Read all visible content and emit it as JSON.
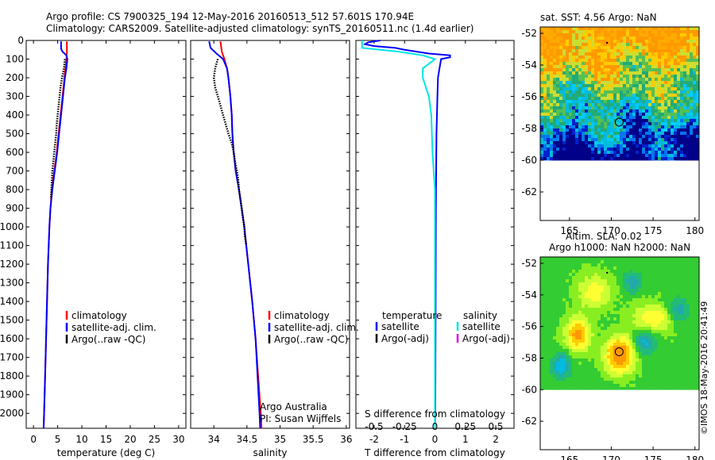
{
  "header": {
    "line1": "Argo profile: CS 7900325_194 12-May-2016 20160513_512 57.601S 170.94E",
    "line2": "Climatology: CARS2009. Satellite-adjusted climatology: synTS_20160511.nc (1.4d earlier)"
  },
  "colors": {
    "climatology": "#ff0000",
    "satellite": "#0000ff",
    "argo": "#000000",
    "sal_sat": "#00e5e5",
    "sal_argo": "#e000e0"
  },
  "legends": {
    "temp": [
      "climatology",
      "satellite-adj. clim.",
      "Argo(..raw -QC)"
    ],
    "sal": [
      "climatology",
      "satellite-adj. clim.",
      "Argo(..raw -QC)"
    ],
    "diff": {
      "col1_title": "temperature",
      "col2_title": "salinity",
      "satellite": "satellite",
      "argo": "Argo(-adj)"
    }
  },
  "annotations": {
    "argo_line1": "Argo Australia",
    "argo_line2": "PI: Susan Wijffels"
  },
  "side_note": "©IMOS 18-May-2016 20:41:49",
  "chart_data": [
    {
      "type": "line",
      "id": "temperature",
      "xlabel": "temperature (deg C)",
      "ylabel": "",
      "xlim": [
        -1.5,
        31.5
      ],
      "ylim": [
        2080,
        0
      ],
      "xticks": [
        0,
        5,
        10,
        15,
        20,
        25,
        30
      ],
      "yticks": [
        0,
        100,
        200,
        300,
        400,
        500,
        600,
        700,
        800,
        900,
        1000,
        1100,
        1200,
        1300,
        1400,
        1500,
        1600,
        1700,
        1800,
        1900,
        2000
      ],
      "series": [
        {
          "name": "climatology",
          "depth": [
            5,
            60,
            100,
            150,
            200,
            300,
            400,
            500,
            600,
            700,
            800,
            900,
            1000,
            1200,
            1400,
            1600,
            1800,
            2000,
            2080
          ],
          "values": [
            6.9,
            6.9,
            6.8,
            6.6,
            6.4,
            6.0,
            5.6,
            5.2,
            4.8,
            4.3,
            3.8,
            3.5,
            3.3,
            3.0,
            2.8,
            2.6,
            2.4,
            2.2,
            2.1
          ]
        },
        {
          "name": "satellite-adj. clim.",
          "depth": [
            5,
            45,
            60,
            80,
            100,
            150,
            200,
            300,
            400,
            500,
            600,
            700,
            800,
            900,
            1000,
            1200,
            1400,
            1600,
            1800,
            2000,
            2080
          ],
          "values": [
            5.7,
            5.7,
            6.0,
            6.8,
            7.0,
            6.8,
            6.5,
            6.1,
            5.7,
            5.3,
            4.9,
            4.4,
            3.9,
            3.5,
            3.3,
            3.0,
            2.8,
            2.6,
            2.4,
            2.2,
            2.1
          ]
        },
        {
          "name": "Argo(..raw -QC)",
          "depth": [
            100,
            150,
            200,
            250,
            300,
            350,
            400,
            450,
            500,
            550,
            600,
            650,
            700,
            750,
            800,
            850
          ],
          "values": [
            6.5,
            6.3,
            5.9,
            5.6,
            5.4,
            5.2,
            5.0,
            4.8,
            4.7,
            4.5,
            4.3,
            4.1,
            3.9,
            3.8,
            3.7,
            3.6
          ]
        }
      ]
    },
    {
      "type": "line",
      "id": "salinity",
      "xlabel": "salinity",
      "ylabel": "",
      "xlim": [
        33.65,
        36.05
      ],
      "ylim": [
        2080,
        0
      ],
      "xticks": [
        34,
        34.5,
        35,
        35.5,
        36
      ],
      "series": [
        {
          "name": "climatology",
          "depth": [
            5,
            60,
            100,
            150,
            200,
            300,
            400,
            500,
            600,
            700,
            800,
            900,
            1000,
            1200,
            1400,
            1600,
            1800,
            2000,
            2080
          ],
          "values": [
            34.1,
            34.12,
            34.16,
            34.2,
            34.22,
            34.25,
            34.27,
            34.28,
            34.3,
            34.33,
            34.38,
            34.42,
            34.46,
            34.52,
            34.58,
            34.63,
            34.67,
            34.71,
            34.72
          ]
        },
        {
          "name": "satellite-adj. clim.",
          "depth": [
            5,
            40,
            70,
            100,
            150,
            200,
            300,
            400,
            500,
            600,
            700,
            800,
            900,
            1000,
            1200,
            1400,
            1600,
            1800,
            2000,
            2080
          ],
          "values": [
            33.93,
            33.95,
            34.04,
            34.14,
            34.2,
            34.22,
            34.25,
            34.27,
            34.28,
            34.3,
            34.33,
            34.38,
            34.42,
            34.46,
            34.52,
            34.58,
            34.63,
            34.66,
            34.69,
            34.7
          ]
        },
        {
          "name": "Argo(..raw -QC)",
          "depth": [
            100,
            150,
            200,
            250,
            300,
            350,
            400,
            450,
            500,
            550,
            600,
            650,
            700,
            750,
            800,
            850,
            900,
            950,
            1000,
            1050,
            1100
          ],
          "values": [
            34.06,
            34.02,
            34.0,
            34.02,
            34.06,
            34.1,
            34.14,
            34.18,
            34.22,
            34.27,
            34.3,
            34.32,
            34.35,
            34.37,
            34.38,
            34.4,
            34.42,
            34.44,
            34.46,
            34.47,
            34.49
          ]
        }
      ]
    },
    {
      "type": "line",
      "id": "difference",
      "xlabel": "T difference from climatology",
      "xlabel2": "S difference from climatology",
      "xlim": [
        -2.6,
        2.6
      ],
      "ylim": [
        2080,
        0
      ],
      "xticks": [
        -2,
        -1,
        0,
        1,
        2
      ],
      "xticks_s": [
        "-0.5",
        "-0.25",
        "0",
        "0.25",
        "0.5"
      ],
      "series": [
        {
          "name": "temperature satellite",
          "depth": [
            0,
            10,
            20,
            30,
            40,
            50,
            60,
            70,
            80,
            90,
            100,
            150,
            200,
            300,
            500,
            700,
            1000,
            1500,
            2000,
            2080
          ],
          "values": [
            -1.8,
            -2.2,
            -2.3,
            -2.0,
            -1.3,
            -1.0,
            -0.6,
            -0.2,
            0.5,
            0.5,
            0.2,
            0.15,
            0.1,
            0.08,
            0.05,
            0.04,
            0.03,
            0.02,
            0.01,
            0.0
          ]
        },
        {
          "name": "salinity satellite",
          "depth": [
            0,
            40,
            60,
            80,
            100,
            150,
            200,
            300,
            400,
            600,
            800,
            1000,
            1200,
            1500,
            2000,
            2080
          ],
          "values": [
            -0.6,
            -0.6,
            -0.3,
            -0.1,
            0.0,
            -0.1,
            -0.1,
            -0.05,
            -0.03,
            -0.02,
            0.0,
            0.0,
            0.0,
            0.0,
            0.0,
            0.0
          ]
        }
      ]
    },
    {
      "type": "heatmap",
      "id": "sst-map",
      "title": "sat. SST: 4.56  Argo: NaN",
      "xlim": [
        161.5,
        180.5
      ],
      "ylim": [
        -63.8,
        -51.6
      ],
      "xticks": [
        165,
        170,
        175,
        180
      ],
      "yticks": [
        -52,
        -54,
        -56,
        -58,
        -60,
        -62
      ],
      "data_lat_range": [
        -60,
        -51.6
      ],
      "float_position": {
        "lon": 170.94,
        "lat": -57.601
      },
      "previous_position": {
        "lon": 169.5,
        "lat": -52.6
      }
    },
    {
      "type": "heatmap",
      "id": "sla-map",
      "title": "Altim. SLA: 0.02",
      "subtitle": "Argo h1000: NaN h2000: NaN",
      "xlim": [
        161.5,
        180.5
      ],
      "ylim": [
        -63.8,
        -51.6
      ],
      "xticks": [
        165,
        170,
        175,
        180
      ],
      "yticks": [
        -52,
        -54,
        -56,
        -58,
        -60,
        -62
      ],
      "data_lat_range": [
        -60,
        -51.6
      ],
      "float_position": {
        "lon": 170.94,
        "lat": -57.601
      },
      "previous_position": {
        "lon": 169.5,
        "lat": -52.6
      }
    }
  ]
}
